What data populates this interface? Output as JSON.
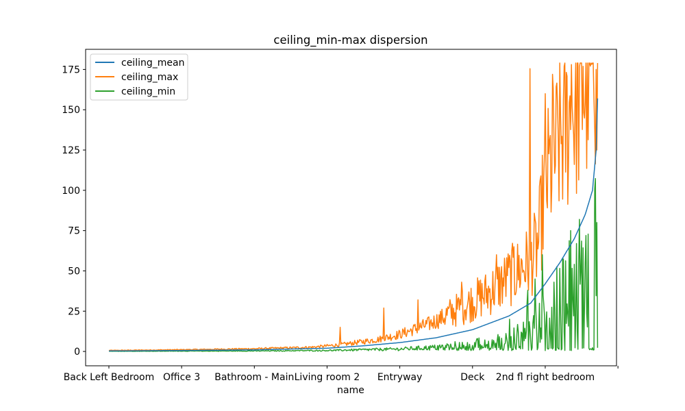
{
  "chart_data": {
    "type": "line",
    "title": "ceiling_min-max dispersion",
    "xlabel": "name",
    "ylabel": "",
    "ylim": [
      -8.9,
      187.5
    ],
    "yticks": [
      0,
      25,
      50,
      75,
      100,
      125,
      150,
      175
    ],
    "n_points": 670,
    "xlim": [
      -32,
      698
    ],
    "xticks": [
      {
        "pos": 0,
        "label": "Back Left Bedroom"
      },
      {
        "pos": 100,
        "label": "Office 3"
      },
      {
        "pos": 200,
        "label": "Bathroom - Main"
      },
      {
        "pos": 300,
        "label": "Living room 2"
      },
      {
        "pos": 400,
        "label": "Entryway"
      },
      {
        "pos": 500,
        "label": "Deck"
      },
      {
        "pos": 600,
        "label": "2nd fl right bedroom"
      },
      {
        "pos": 700,
        "label": ""
      }
    ],
    "series": [
      {
        "name": "ceiling_mean",
        "color": "#1f77b4",
        "anchors": [
          [
            0,
            0.3
          ],
          [
            100,
            0.6
          ],
          [
            200,
            1.0
          ],
          [
            300,
            2.0
          ],
          [
            350,
            3.5
          ],
          [
            400,
            5.5
          ],
          [
            450,
            8.5
          ],
          [
            500,
            13.5
          ],
          [
            550,
            22
          ],
          [
            580,
            30
          ],
          [
            600,
            42
          ],
          [
            620,
            55
          ],
          [
            640,
            70
          ],
          [
            655,
            85
          ],
          [
            665,
            100
          ],
          [
            670,
            125
          ],
          [
            672,
            157
          ]
        ]
      },
      {
        "name": "ceiling_max",
        "color": "#ff7f0e",
        "anchors": [
          [
            0,
            0.6
          ],
          [
            100,
            1.0
          ],
          [
            200,
            1.6
          ],
          [
            280,
            2.5
          ],
          [
            320,
            4
          ],
          [
            370,
            7
          ],
          [
            400,
            10
          ],
          [
            440,
            16
          ],
          [
            480,
            24
          ],
          [
            520,
            33
          ],
          [
            550,
            42
          ],
          [
            580,
            52
          ],
          [
            590,
            60
          ],
          [
            600,
            95
          ],
          [
            620,
            120
          ],
          [
            640,
            140
          ],
          [
            660,
            155
          ],
          [
            672,
            165
          ]
        ],
        "spikes": [
          [
            579,
            175.5
          ],
          [
            600,
            160
          ],
          [
            610,
            172
          ],
          [
            626,
            177
          ],
          [
            636,
            178
          ],
          [
            652,
            177
          ],
          [
            665,
            179
          ],
          [
            670,
            175
          ],
          [
            557,
            65
          ],
          [
            533,
            60
          ],
          [
            485,
            43
          ],
          [
            425,
            32
          ],
          [
            378,
            27
          ],
          [
            318,
            15
          ],
          [
            548,
            47
          ]
        ]
      },
      {
        "name": "ceiling_min",
        "color": "#2ca02c",
        "anchors": [
          [
            0,
            0.1
          ],
          [
            200,
            0.3
          ],
          [
            300,
            0.6
          ],
          [
            400,
            1.5
          ],
          [
            450,
            2.5
          ],
          [
            500,
            4
          ],
          [
            550,
            7
          ],
          [
            580,
            12
          ],
          [
            600,
            20
          ],
          [
            620,
            30
          ],
          [
            640,
            40
          ],
          [
            660,
            48
          ],
          [
            668,
            60
          ],
          [
            672,
            85
          ]
        ],
        "spikes": [
          [
            635,
            75
          ],
          [
            647,
            82
          ],
          [
            656,
            72
          ],
          [
            668,
            101
          ],
          [
            671,
            80
          ],
          [
            596,
            60
          ],
          [
            586,
            45
          ],
          [
            576,
            38
          ],
          [
            612,
            43
          ],
          [
            624,
            58
          ],
          [
            575,
            30
          ],
          [
            551,
            20
          ]
        ]
      }
    ],
    "legend_position": "top-left",
    "grid": false
  }
}
